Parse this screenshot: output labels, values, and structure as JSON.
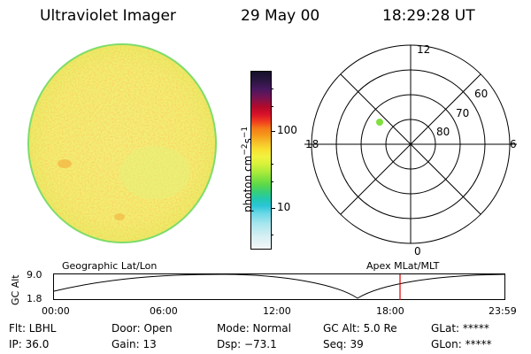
{
  "header": {
    "instrument": "Ultraviolet Imager",
    "date": "29 May 00",
    "time": "18:29:28 UT"
  },
  "colorbar": {
    "unit_label_prefix": "photon cm",
    "unit_sup1": "−2",
    "unit_mid": "s",
    "unit_sup2": "−1",
    "tick_100": "100",
    "tick_10": "10"
  },
  "polar_plot": {
    "mlt_top": "12",
    "mlt_left": "18",
    "mlt_right": "6",
    "mlt_bottom": "0",
    "lat_60": "60",
    "lat_70": "70",
    "lat_80": "80",
    "colors": {
      "point": "#7fe040",
      "lines": "#000000"
    }
  },
  "orbit_panel": {
    "y_axis_label": "GC Alt",
    "y_tick_top": "9.0",
    "y_tick_bottom": "1.8",
    "left_title": "Geographic Lat/Lon",
    "right_title": "Apex MLat/MLT",
    "x_ticks": [
      "00:00",
      "06:00",
      "12:00",
      "18:00",
      "23:59"
    ],
    "colors": {
      "marker": "#e00000"
    }
  },
  "status": {
    "flt": "Flt: LBHL",
    "ip": "IP: 36.0",
    "door": "Door: Open",
    "gain": "Gain: 13",
    "mode": "Mode: Normal",
    "dsp": "Dsp:  −73.1",
    "gc_alt": "GC Alt: 5.0 Re",
    "seq": "Seq: 39",
    "glat": "GLat: *****",
    "glon": "GLon: *****"
  }
}
